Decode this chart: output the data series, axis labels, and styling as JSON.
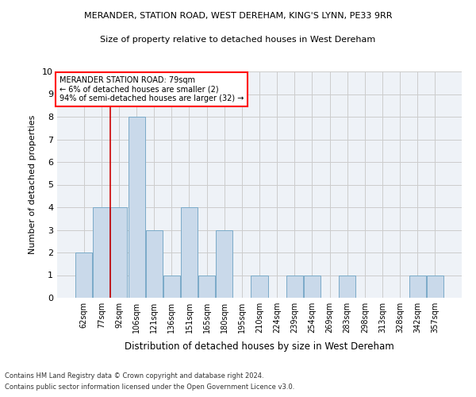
{
  "title1": "MERANDER, STATION ROAD, WEST DEREHAM, KING'S LYNN, PE33 9RR",
  "title2": "Size of property relative to detached houses in West Dereham",
  "xlabel": "Distribution of detached houses by size in West Dereham",
  "ylabel": "Number of detached properties",
  "categories": [
    "62sqm",
    "77sqm",
    "92sqm",
    "106sqm",
    "121sqm",
    "136sqm",
    "151sqm",
    "165sqm",
    "180sqm",
    "195sqm",
    "210sqm",
    "224sqm",
    "239sqm",
    "254sqm",
    "269sqm",
    "283sqm",
    "298sqm",
    "313sqm",
    "328sqm",
    "342sqm",
    "357sqm"
  ],
  "values": [
    2,
    4,
    4,
    8,
    3,
    1,
    4,
    1,
    3,
    0,
    1,
    0,
    1,
    1,
    0,
    1,
    0,
    0,
    0,
    1,
    1
  ],
  "bar_color": "#c9d9ea",
  "bar_edgecolor": "#7aaac8",
  "vline_x": 1.5,
  "annotation_line1": "MERANDER STATION ROAD: 79sqm",
  "annotation_line2": "← 6% of detached houses are smaller (2)",
  "annotation_line3": "94% of semi-detached houses are larger (32) →",
  "annotation_box_color": "white",
  "annotation_box_edgecolor": "red",
  "vline_color": "#cc0000",
  "ylim": [
    0,
    10
  ],
  "yticks": [
    0,
    1,
    2,
    3,
    4,
    5,
    6,
    7,
    8,
    9,
    10
  ],
  "grid_color": "#cccccc",
  "footnote1": "Contains HM Land Registry data © Crown copyright and database right 2024.",
  "footnote2": "Contains public sector information licensed under the Open Government Licence v3.0.",
  "plot_bg_color": "#eef2f7"
}
